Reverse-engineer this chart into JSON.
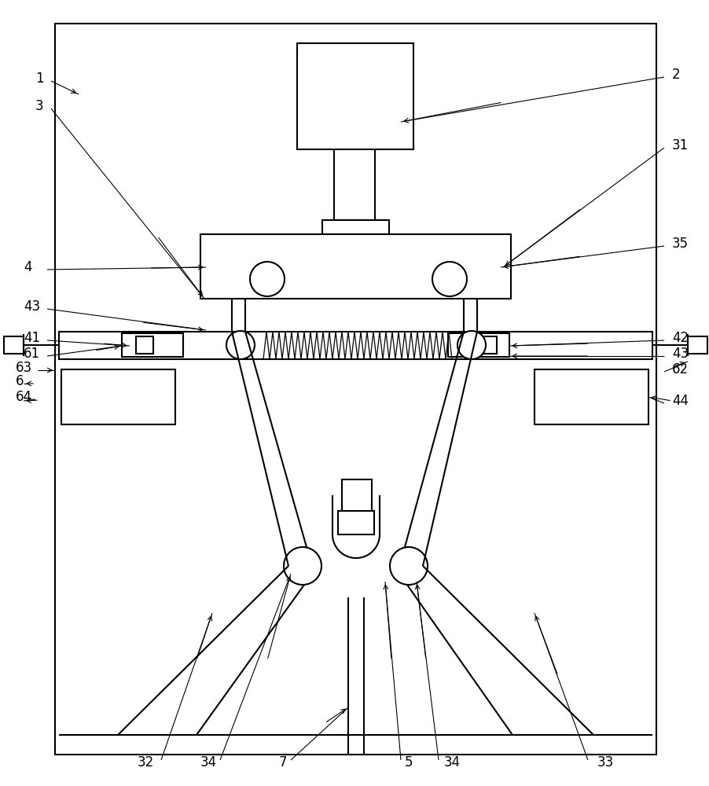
{
  "bg_color": "#ffffff",
  "lc": "#000000",
  "lw": 1.5,
  "tlw": 0.8,
  "fs": 12,
  "fig_w": 9.02,
  "fig_h": 10.0,
  "dpi": 100
}
